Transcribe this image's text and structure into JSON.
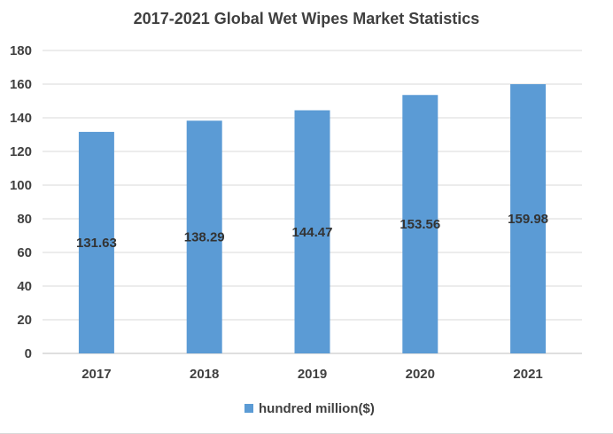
{
  "chart_data": {
    "type": "bar",
    "title": "2017-2021 Global Wet Wipes Market Statistics",
    "categories": [
      "2017",
      "2018",
      "2019",
      "2020",
      "2021"
    ],
    "series": [
      {
        "name": "hundred million($)",
        "values": [
          131.63,
          138.29,
          144.47,
          153.56,
          159.98
        ],
        "data_labels": [
          "131.63",
          "138.29",
          "144.47",
          "153.56",
          "159.98"
        ]
      }
    ],
    "xlabel": "",
    "ylabel": "",
    "ylim": [
      0,
      180
    ],
    "yticks": [
      0,
      20,
      40,
      60,
      80,
      100,
      120,
      140,
      160,
      180
    ],
    "grid": true,
    "legend_position": "bottom",
    "colors": {
      "bar": "#5b9bd5"
    }
  }
}
